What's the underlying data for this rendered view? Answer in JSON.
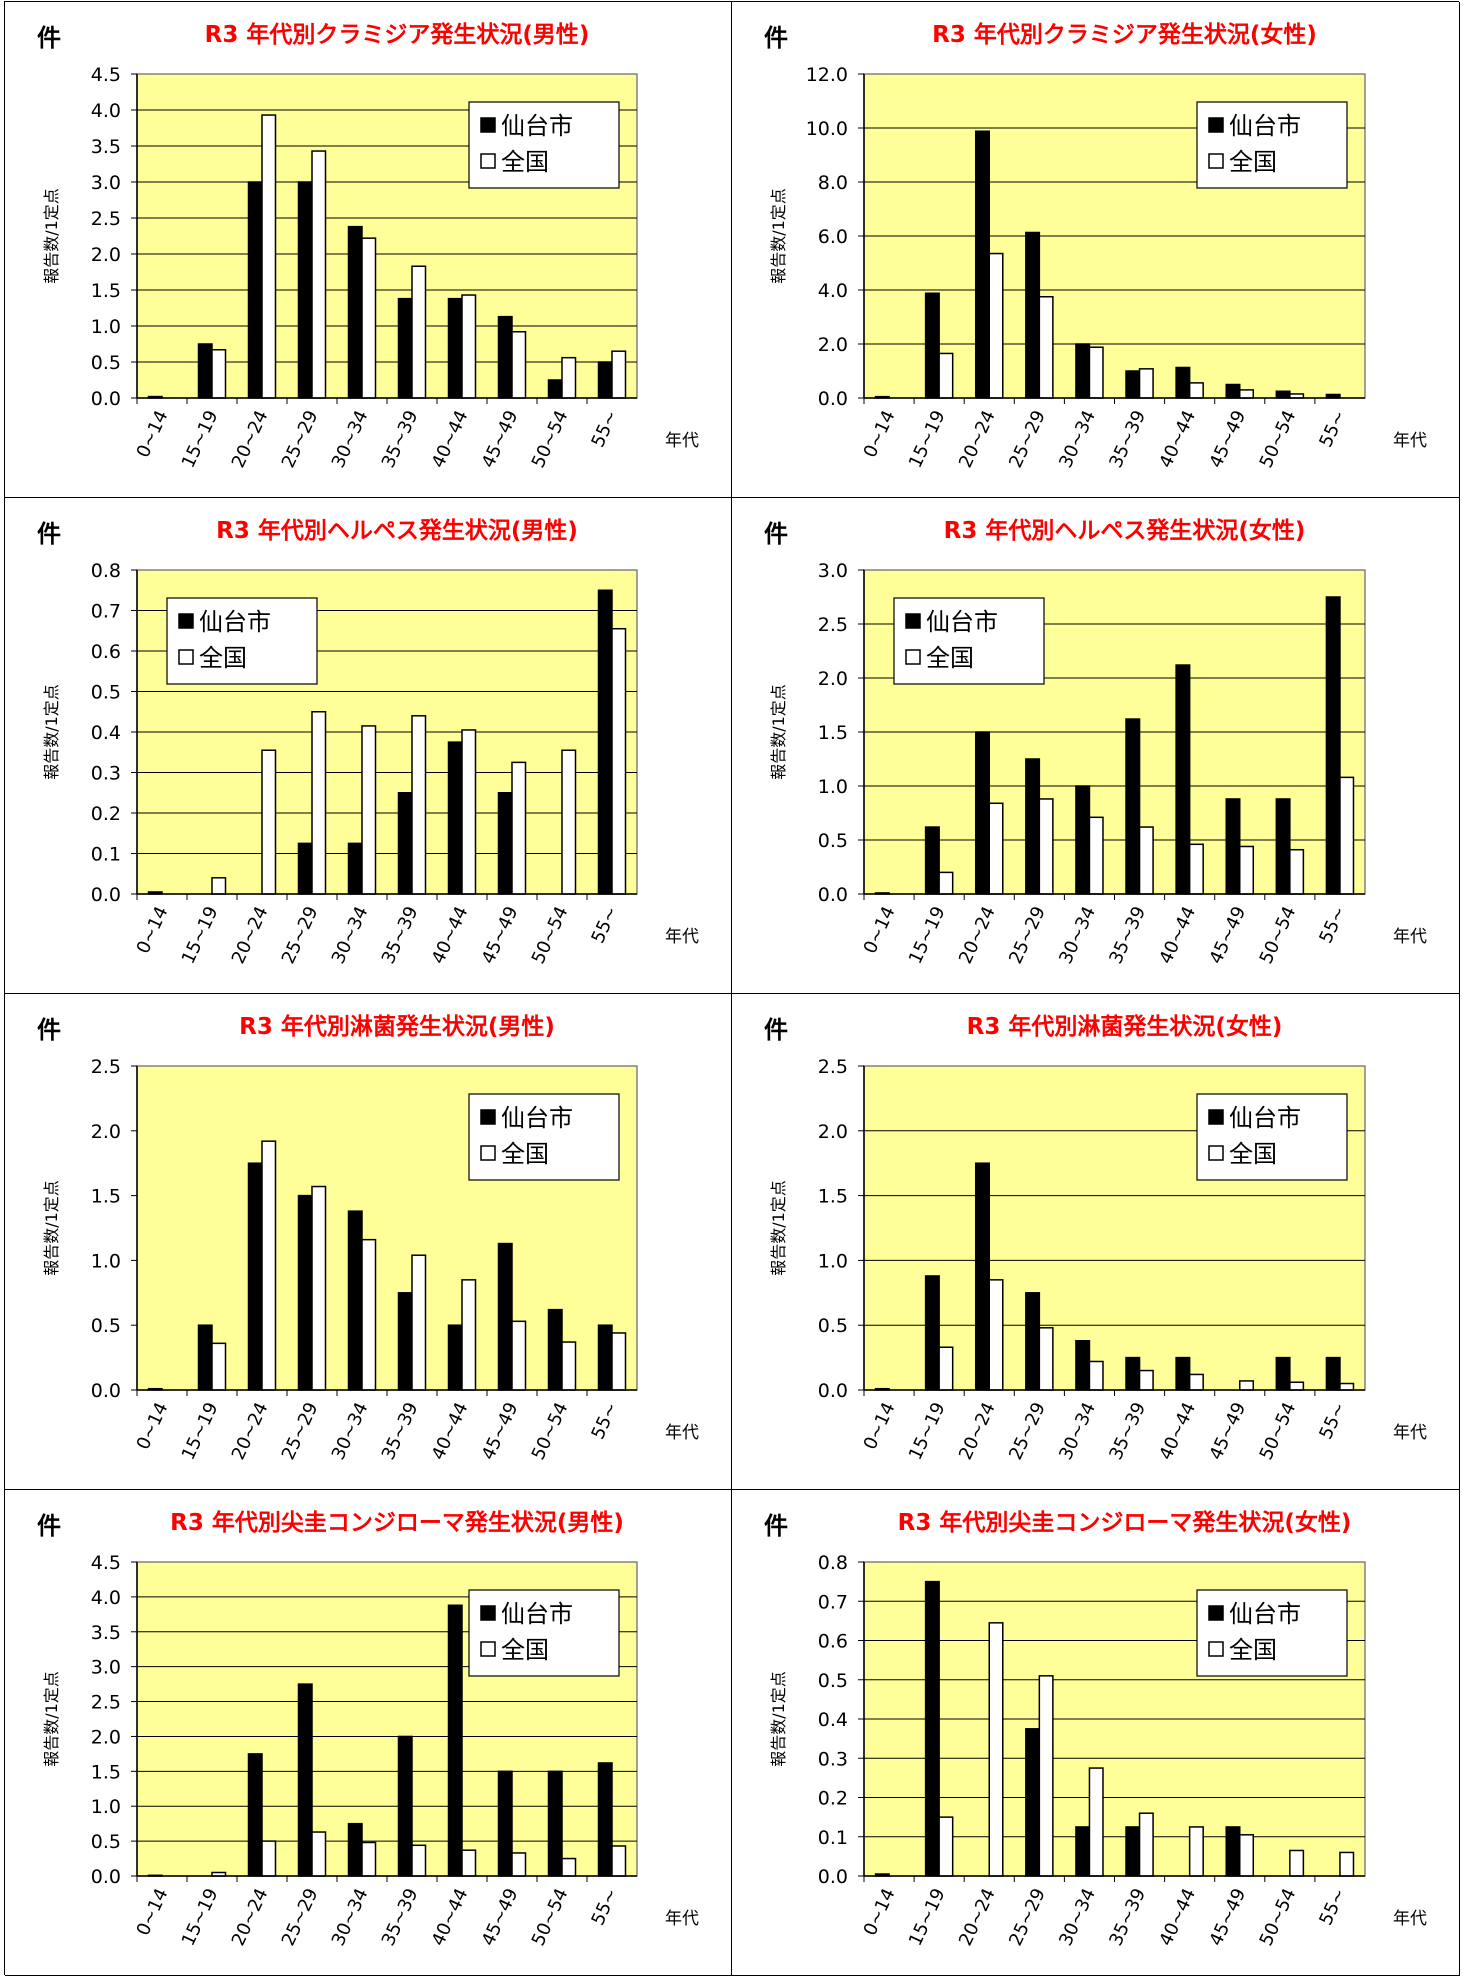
{
  "common": {
    "unit_label": "件",
    "y_axis_label": "報告数/1定点",
    "x_axis_label": "年代",
    "legend": [
      "仙台市",
      "全国"
    ],
    "colors": {
      "plot_bg": "#ffff99",
      "title": "#ff0000",
      "sendai": "#000000",
      "national": "#ffffff"
    }
  },
  "chart_data": [
    {
      "type": "bar",
      "title": "R3  年代別クラミジア発生状況(男性)",
      "categories": [
        "0~14",
        "15~19",
        "20~24",
        "25~29",
        "30~34",
        "35~39",
        "40~44",
        "45~49",
        "50~54",
        "55~"
      ],
      "series": [
        {
          "name": "仙台市",
          "values": [
            0.02,
            0.75,
            3.0,
            3.0,
            2.38,
            1.38,
            1.38,
            1.13,
            0.25,
            0.5
          ]
        },
        {
          "name": "全国",
          "values": [
            0.0,
            0.67,
            3.93,
            3.43,
            2.22,
            1.83,
            1.43,
            0.92,
            0.56,
            0.65
          ]
        }
      ],
      "ylim": [
        0,
        4.5
      ],
      "ystep": 0.5,
      "decimals": 1,
      "legend_pos": "top-right",
      "grid": true
    },
    {
      "type": "bar",
      "title": "R3  年代別クラミジア発生状況(女性)",
      "categories": [
        "0~14",
        "15~19",
        "20~24",
        "25~29",
        "30~34",
        "35~39",
        "40~44",
        "45~49",
        "50~54",
        "55~"
      ],
      "series": [
        {
          "name": "仙台市",
          "values": [
            0.05,
            3.88,
            9.88,
            6.13,
            2.0,
            1.0,
            1.13,
            0.5,
            0.25,
            0.13
          ]
        },
        {
          "name": "全国",
          "values": [
            0.0,
            1.65,
            5.35,
            3.75,
            1.88,
            1.08,
            0.56,
            0.3,
            0.15,
            0.0
          ]
        }
      ],
      "ylim": [
        0,
        12
      ],
      "ystep": 2,
      "decimals": 1,
      "legend_pos": "top-right",
      "grid": true
    },
    {
      "type": "bar",
      "title": "R3  年代別ヘルペス発生状況(男性)",
      "categories": [
        "0~14",
        "15~19",
        "20~24",
        "25~29",
        "30~34",
        "35~39",
        "40~44",
        "45~49",
        "50~54",
        "55~"
      ],
      "series": [
        {
          "name": "仙台市",
          "values": [
            0.005,
            0.0,
            0.0,
            0.125,
            0.125,
            0.25,
            0.375,
            0.25,
            0.0,
            0.75
          ]
        },
        {
          "name": "全国",
          "values": [
            0.0,
            0.04,
            0.355,
            0.45,
            0.415,
            0.44,
            0.405,
            0.325,
            0.355,
            0.655
          ]
        }
      ],
      "ylim": [
        0,
        0.8
      ],
      "ystep": 0.1,
      "decimals": 1,
      "legend_pos": "top-left",
      "grid": true
    },
    {
      "type": "bar",
      "title": "R3  年代別ヘルペス発生状況(女性)",
      "categories": [
        "0~14",
        "15~19",
        "20~24",
        "25~29",
        "30~34",
        "35~39",
        "40~44",
        "45~49",
        "50~54",
        "55~"
      ],
      "series": [
        {
          "name": "仙台市",
          "values": [
            0.01,
            0.62,
            1.5,
            1.25,
            1.0,
            1.62,
            2.12,
            0.88,
            0.88,
            2.75
          ]
        },
        {
          "name": "全国",
          "values": [
            0.0,
            0.2,
            0.84,
            0.88,
            0.71,
            0.62,
            0.46,
            0.44,
            0.41,
            1.08
          ]
        }
      ],
      "ylim": [
        0,
        3.0
      ],
      "ystep": 0.5,
      "decimals": 1,
      "legend_pos": "top-left",
      "grid": true
    },
    {
      "type": "bar",
      "title": "R3  年代別淋菌発生状況(男性)",
      "categories": [
        "0~14",
        "15~19",
        "20~24",
        "25~29",
        "30~34",
        "35~39",
        "40~44",
        "45~49",
        "50~54",
        "55~"
      ],
      "series": [
        {
          "name": "仙台市",
          "values": [
            0.01,
            0.5,
            1.75,
            1.5,
            1.38,
            0.75,
            0.5,
            1.13,
            0.62,
            0.5
          ]
        },
        {
          "name": "全国",
          "values": [
            0.0,
            0.36,
            1.92,
            1.57,
            1.16,
            1.04,
            0.85,
            0.53,
            0.37,
            0.44
          ]
        }
      ],
      "ylim": [
        0,
        2.5
      ],
      "ystep": 0.5,
      "decimals": 1,
      "legend_pos": "top-right",
      "grid": false
    },
    {
      "type": "bar",
      "title": "R3  年代別淋菌発生状況(女性)",
      "categories": [
        "0~14",
        "15~19",
        "20~24",
        "25~29",
        "30~34",
        "35~39",
        "40~44",
        "45~49",
        "50~54",
        "55~"
      ],
      "series": [
        {
          "name": "仙台市",
          "values": [
            0.01,
            0.88,
            1.75,
            0.75,
            0.38,
            0.25,
            0.25,
            0.0,
            0.25,
            0.25
          ]
        },
        {
          "name": "全国",
          "values": [
            0.0,
            0.33,
            0.85,
            0.48,
            0.22,
            0.15,
            0.12,
            0.07,
            0.06,
            0.05
          ]
        }
      ],
      "ylim": [
        0,
        2.5
      ],
      "ystep": 0.5,
      "decimals": 1,
      "legend_pos": "top-right",
      "grid": true
    },
    {
      "type": "bar",
      "title": "R3  年代別尖圭コンジローマ発生状況(男性)",
      "categories": [
        "0~14",
        "15~19",
        "20~24",
        "25~29",
        "30~34",
        "35~39",
        "40~44",
        "45~49",
        "50~54",
        "55~"
      ],
      "series": [
        {
          "name": "仙台市",
          "values": [
            0.01,
            0.0,
            1.75,
            2.75,
            0.75,
            2.0,
            3.88,
            1.5,
            1.5,
            1.62
          ]
        },
        {
          "name": "全国",
          "values": [
            0.0,
            0.05,
            0.5,
            0.63,
            0.48,
            0.44,
            0.37,
            0.33,
            0.25,
            0.43
          ]
        }
      ],
      "ylim": [
        0,
        4.5
      ],
      "ystep": 0.5,
      "decimals": 1,
      "legend_pos": "top-right",
      "grid": true
    },
    {
      "type": "bar",
      "title": "R3  年代別尖圭コンジローマ発生状況(女性)",
      "categories": [
        "0~14",
        "15~19",
        "20~24",
        "25~29",
        "30~34",
        "35~39",
        "40~44",
        "45~49",
        "50~54",
        "55~"
      ],
      "series": [
        {
          "name": "仙台市",
          "values": [
            0.005,
            0.75,
            0.0,
            0.375,
            0.125,
            0.125,
            0.0,
            0.125,
            0.0,
            0.0
          ]
        },
        {
          "name": "全国",
          "values": [
            0.0,
            0.15,
            0.645,
            0.51,
            0.275,
            0.16,
            0.125,
            0.105,
            0.065,
            0.06
          ]
        }
      ],
      "ylim": [
        0,
        0.8
      ],
      "ystep": 0.1,
      "decimals": 1,
      "legend_pos": "top-right",
      "grid": true
    }
  ]
}
